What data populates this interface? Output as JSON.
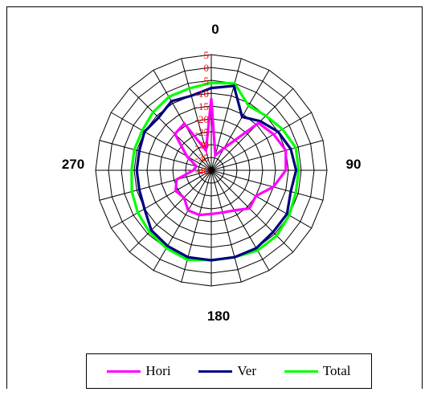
{
  "chart_data": {
    "type": "radar",
    "title": "",
    "direction_labels": [
      "0",
      "90",
      "180",
      "270"
    ],
    "radial_axis": {
      "min": -40,
      "max": 5,
      "step": 5,
      "tick_labels": [
        "5",
        "0",
        "-5",
        "-10",
        "-15",
        "-20",
        "-25",
        "-30",
        "-35",
        "-40"
      ]
    },
    "angles_deg": [
      0,
      15,
      30,
      45,
      60,
      75,
      90,
      105,
      120,
      135,
      150,
      165,
      180,
      195,
      210,
      225,
      240,
      255,
      270,
      285,
      300,
      315,
      330,
      345
    ],
    "series": [
      {
        "name": "Hori",
        "color": "#ff00ff",
        "values": [
          -12,
          -34,
          -30,
          -14,
          -12,
          -10,
          -11,
          -15,
          -20,
          -19,
          -22,
          -23,
          -23,
          -22,
          -22,
          -25,
          -24,
          -26,
          -33,
          -34,
          -29,
          -20,
          -19,
          -32
        ]
      },
      {
        "name": "Ver",
        "color": "#000080",
        "values": [
          -8,
          -6,
          -16,
          -13,
          -10,
          -8,
          -7,
          -8,
          -6,
          -6,
          -5,
          -5,
          -5,
          -5,
          -6,
          -7,
          -10,
          -11,
          -11,
          -11,
          -10,
          -11,
          -9,
          -10
        ]
      },
      {
        "name": "Total",
        "color": "#00ff00",
        "values": [
          -6,
          -5,
          -11,
          -10,
          -8,
          -6,
          -6,
          -6,
          -5,
          -4,
          -4,
          -5,
          -5,
          -4,
          -5,
          -6,
          -7,
          -8,
          -9,
          -9,
          -9,
          -8,
          -7,
          -7
        ]
      }
    ],
    "grid": true,
    "legend_position": "bottom"
  }
}
